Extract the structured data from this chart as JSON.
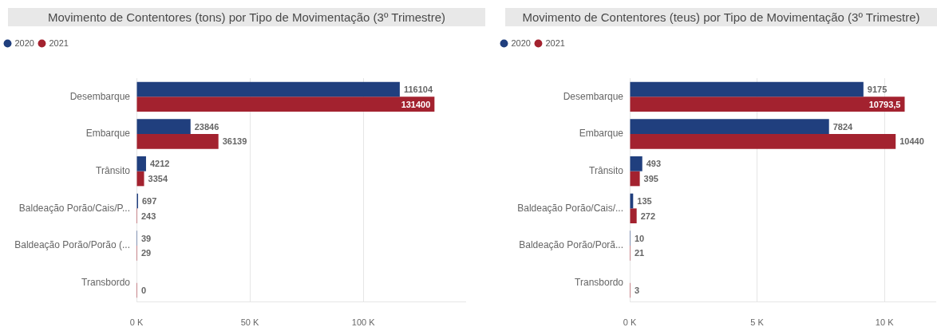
{
  "chart_data": [
    {
      "type": "bar",
      "orientation": "horizontal",
      "title": "Movimento de Contentores (tons) por Tipo de Movimentação (3º Trimestre)",
      "categories": [
        "Desembarque",
        "Embarque",
        "Trânsito",
        "Baldeação Porão/Cais/P...",
        "Baldeação Porão/Porão (...",
        "Transbordo"
      ],
      "series": [
        {
          "name": "2020",
          "color": "#203f7e",
          "values": [
            116104,
            23846,
            4212,
            697,
            39,
            null
          ],
          "value_labels": [
            "116104",
            "23846",
            "4212",
            "697",
            "39",
            null
          ]
        },
        {
          "name": "2021",
          "color": "#a3222f",
          "values": [
            131400,
            36139,
            3354,
            243,
            29,
            0
          ],
          "value_labels": [
            "131400",
            "36139",
            "3354",
            "243",
            "29",
            "0"
          ]
        }
      ],
      "xlim": [
        0,
        145000
      ],
      "xticks": [
        {
          "value": 0,
          "label": "0 K"
        },
        {
          "value": 50000,
          "label": "50 K"
        },
        {
          "value": 100000,
          "label": "100 K"
        }
      ],
      "grid": "x",
      "legend": "top left"
    },
    {
      "type": "bar",
      "orientation": "horizontal",
      "title": "Movimento de Contentores (teus) por Tipo de Movimentação (3º Trimestre)",
      "categories": [
        "Desembarque",
        "Embarque",
        "Trânsito",
        "Baldeação Porão/Cais/...",
        "Baldeação Porão/Porã...",
        "Transbordo"
      ],
      "series": [
        {
          "name": "2020",
          "color": "#203f7e",
          "values": [
            9175,
            7824,
            493,
            135,
            10,
            null
          ],
          "value_labels": [
            "9175",
            "7824",
            "493",
            "135",
            "10",
            null
          ]
        },
        {
          "name": "2021",
          "color": "#a3222f",
          "values": [
            10793.5,
            10440,
            395,
            272,
            21,
            3
          ],
          "value_labels": [
            "10793,5",
            "10440",
            "395",
            "272",
            "21",
            "3"
          ]
        }
      ],
      "xlim": [
        0,
        12000
      ],
      "xticks": [
        {
          "value": 0,
          "label": "0 K"
        },
        {
          "value": 5000,
          "label": "5 K"
        },
        {
          "value": 10000,
          "label": "10 K"
        }
      ],
      "grid": "x",
      "legend": "top left"
    }
  ]
}
